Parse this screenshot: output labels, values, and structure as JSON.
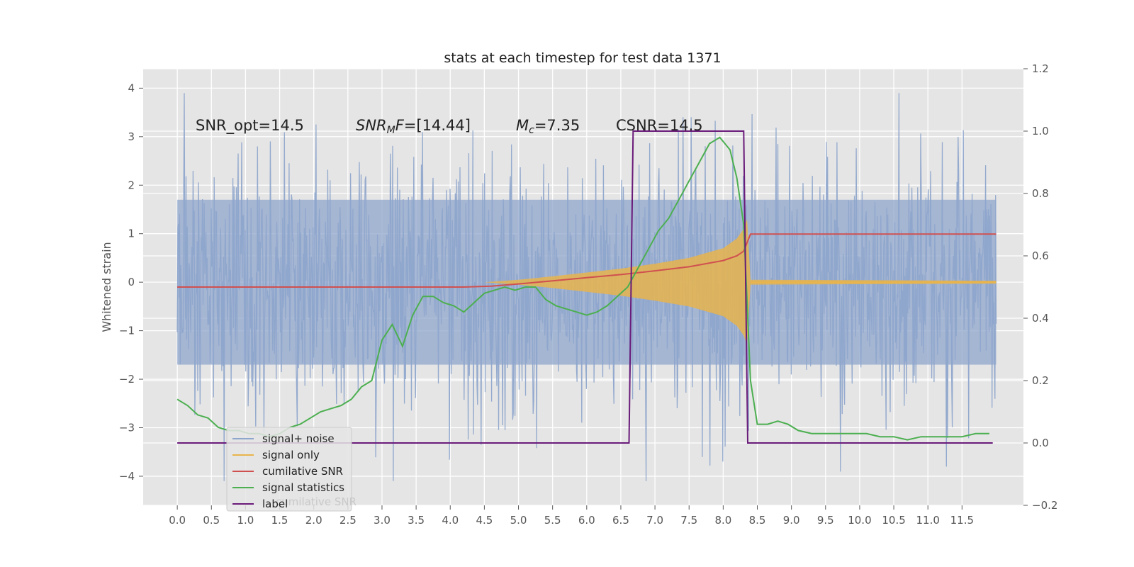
{
  "chart_data": {
    "type": "line",
    "title": "stats at each timestep for test data 1371",
    "xlabel": "",
    "ylabel": "Whitened strain",
    "xlim": [
      -0.5,
      12.4
    ],
    "ylim": [
      -4.6,
      4.4
    ],
    "ylim_right": [
      -0.2,
      1.2
    ],
    "grid": true,
    "x_ticks": [
      "0.0",
      "0.5",
      "1.0",
      "1.5",
      "2.0",
      "2.5",
      "3.0",
      "3.5",
      "4.0",
      "4.5",
      "5.0",
      "5.5",
      "6.0",
      "6.5",
      "7.0",
      "7.5",
      "8.0",
      "8.5",
      "9.0",
      "9.5",
      "10.0",
      "10.5",
      "11.0",
      "11.5"
    ],
    "y_ticks_left": [
      "4",
      "3",
      "2",
      "1",
      "0",
      "−1",
      "−2",
      "−3",
      "−4"
    ],
    "y_ticks_right": [
      "1.2",
      "1.0",
      "0.8",
      "0.6",
      "0.4",
      "0.2",
      "0.0",
      "−0.2"
    ],
    "annotations": [
      {
        "text": "SNR_opt=14.5",
        "x": 0.2,
        "y": 3.05
      },
      {
        "text": "SNR_MF=[14.44]",
        "x": 2.6,
        "y": 3.05
      },
      {
        "text": "M_c=7.35",
        "x": 5.0,
        "y": 3.05
      },
      {
        "text": "CSNR=14.5",
        "x": 6.5,
        "y": 3.05
      }
    ],
    "annot_parts": {
      "snr_opt": "SNR_opt=14.5",
      "snr_mf_main": "SNR",
      "snr_mf_sub": "M",
      "snr_mf_f": "F",
      "snr_mf_rest": "=[14.44]",
      "mc_main": "M",
      "mc_sub": "c",
      "mc_rest": "=7.35",
      "csnr": "CSNR=14.5"
    },
    "legend": {
      "placement": "lower-left",
      "entries": [
        "signal+ noise",
        "signal only",
        "cumilative SNR",
        "signal statistics",
        "label"
      ],
      "hidden_entry": "cumilative SNR"
    },
    "series": [
      {
        "name": "signal+ noise",
        "axis": "left",
        "color": "#8fa6cc",
        "style": "noise",
        "x_range": [
          0.0,
          12.0
        ],
        "typical_envelope": [
          -2.2,
          2.2
        ],
        "extreme_range": [
          -4.1,
          3.9
        ]
      },
      {
        "name": "signal only",
        "axis": "left",
        "color": "#e8b44c",
        "style": "chirp",
        "x": [
          4.5,
          5.0,
          5.5,
          6.0,
          6.5,
          7.0,
          7.5,
          8.0,
          8.2,
          8.3,
          8.35,
          8.4,
          12.0
        ],
        "amplitude": [
          0.0,
          0.05,
          0.12,
          0.2,
          0.28,
          0.38,
          0.5,
          0.7,
          0.9,
          1.1,
          1.3,
          0.05,
          0.03
        ]
      },
      {
        "name": "cumilative SNR",
        "axis": "right",
        "color": "#d05050",
        "x": [
          0.0,
          4.2,
          4.6,
          5.0,
          5.5,
          6.0,
          6.5,
          7.0,
          7.5,
          8.0,
          8.2,
          8.3,
          8.4,
          12.0
        ],
        "y": [
          0.5,
          0.5,
          0.503,
          0.51,
          0.52,
          0.53,
          0.54,
          0.552,
          0.565,
          0.585,
          0.6,
          0.615,
          0.67,
          0.67
        ]
      },
      {
        "name": "signal statistics",
        "axis": "right",
        "color": "#4caf50",
        "x": [
          0.0,
          0.15,
          0.3,
          0.45,
          0.6,
          0.75,
          0.9,
          1.05,
          1.2,
          1.35,
          1.5,
          1.65,
          1.8,
          1.95,
          2.1,
          2.25,
          2.4,
          2.55,
          2.7,
          2.85,
          3.0,
          3.15,
          3.3,
          3.45,
          3.6,
          3.75,
          3.9,
          4.05,
          4.2,
          4.35,
          4.5,
          4.65,
          4.8,
          4.95,
          5.1,
          5.25,
          5.4,
          5.55,
          5.7,
          5.85,
          6.0,
          6.15,
          6.3,
          6.45,
          6.6,
          6.75,
          6.9,
          7.05,
          7.2,
          7.35,
          7.5,
          7.65,
          7.8,
          7.95,
          8.1,
          8.2,
          8.3,
          8.4,
          8.5,
          8.65,
          8.8,
          8.95,
          9.1,
          9.3,
          9.5,
          9.7,
          9.9,
          10.1,
          10.3,
          10.5,
          10.7,
          10.9,
          11.1,
          11.3,
          11.5,
          11.7,
          11.9
        ],
        "y": [
          0.14,
          0.12,
          0.09,
          0.08,
          0.05,
          0.04,
          0.04,
          0.03,
          0.03,
          0.02,
          0.03,
          0.05,
          0.06,
          0.08,
          0.1,
          0.11,
          0.12,
          0.14,
          0.18,
          0.2,
          0.33,
          0.38,
          0.31,
          0.41,
          0.47,
          0.47,
          0.45,
          0.44,
          0.42,
          0.45,
          0.48,
          0.49,
          0.5,
          0.49,
          0.5,
          0.5,
          0.46,
          0.44,
          0.43,
          0.42,
          0.41,
          0.42,
          0.44,
          0.47,
          0.5,
          0.56,
          0.62,
          0.68,
          0.72,
          0.78,
          0.84,
          0.9,
          0.96,
          0.98,
          0.94,
          0.85,
          0.7,
          0.2,
          0.06,
          0.06,
          0.07,
          0.06,
          0.04,
          0.03,
          0.03,
          0.03,
          0.03,
          0.03,
          0.02,
          0.02,
          0.01,
          0.02,
          0.02,
          0.02,
          0.02,
          0.03,
          0.03
        ]
      },
      {
        "name": "label",
        "axis": "right",
        "color": "#6a1b7a",
        "x": [
          0.0,
          6.62,
          6.68,
          8.3,
          8.36,
          11.95
        ],
        "y": [
          0.0,
          0.0,
          1.0,
          1.0,
          0.0,
          0.0
        ]
      }
    ]
  }
}
